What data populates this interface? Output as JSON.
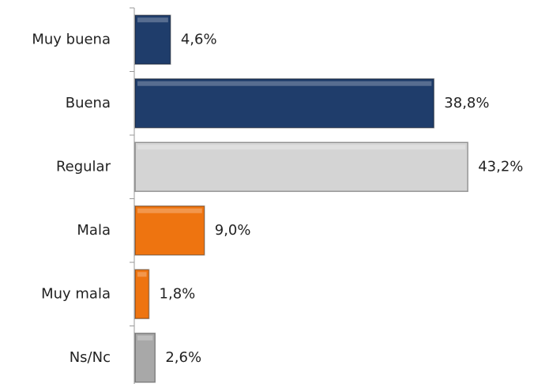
{
  "chart_data": {
    "type": "bar",
    "orientation": "horizontal",
    "categories": [
      "Muy buena",
      "Buena",
      "Regular",
      "Mala",
      "Muy mala",
      "Ns/Nc"
    ],
    "values": [
      4.6,
      38.8,
      43.2,
      9.0,
      1.8,
      2.6
    ],
    "value_labels": [
      "4,6%",
      "38,8%",
      "43,2%",
      "9,0%",
      "1,8%",
      "2,6%"
    ],
    "colors": [
      "#1f3d6b",
      "#1f3d6b",
      "#d4d4d4",
      "#ee7410",
      "#ee7410",
      "#a8a8a8"
    ]
  }
}
